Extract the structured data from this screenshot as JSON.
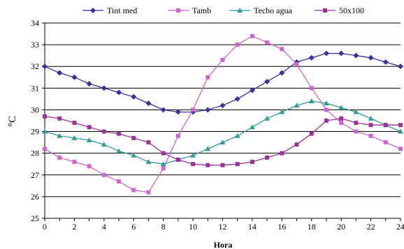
{
  "chart_data": {
    "type": "line",
    "xlabel": "Hora",
    "ylabel": "°C",
    "xlim": [
      0,
      24
    ],
    "ylim": [
      25,
      34
    ],
    "xticks": [
      0,
      2,
      4,
      6,
      8,
      10,
      12,
      14,
      16,
      18,
      20,
      22,
      24
    ],
    "yticks": [
      25,
      26,
      27,
      28,
      29,
      30,
      31,
      32,
      33,
      34
    ],
    "grid": "horizontal",
    "legend_position": "top",
    "x": [
      0,
      1,
      2,
      3,
      4,
      5,
      6,
      7,
      8,
      9,
      10,
      11,
      12,
      13,
      14,
      15,
      16,
      17,
      18,
      19,
      20,
      21,
      22,
      23,
      24
    ],
    "series": [
      {
        "name": "Tint med",
        "color": "#333399",
        "marker": "diamond",
        "values": [
          32.0,
          31.7,
          31.5,
          31.2,
          31.0,
          30.8,
          30.6,
          30.3,
          30.0,
          29.9,
          29.9,
          30.0,
          30.2,
          30.5,
          30.9,
          31.3,
          31.7,
          32.2,
          32.4,
          32.6,
          32.6,
          32.5,
          32.4,
          32.2,
          32.0
        ]
      },
      {
        "name": "Tamb",
        "color": "#CC66CC",
        "marker": "square",
        "values": [
          28.2,
          27.8,
          27.6,
          27.4,
          27.0,
          26.7,
          26.3,
          26.2,
          27.3,
          28.8,
          30.0,
          31.5,
          32.3,
          33.0,
          33.4,
          33.1,
          32.8,
          32.1,
          31.0,
          30.0,
          29.4,
          29.0,
          28.8,
          28.5,
          28.2
        ]
      },
      {
        "name": "Techo agua",
        "color": "#339999",
        "marker": "triangle",
        "values": [
          29.0,
          28.8,
          28.7,
          28.6,
          28.4,
          28.1,
          27.9,
          27.6,
          27.5,
          27.7,
          27.9,
          28.2,
          28.5,
          28.8,
          29.2,
          29.6,
          29.9,
          30.2,
          30.4,
          30.3,
          30.1,
          29.9,
          29.6,
          29.3,
          29.0
        ]
      },
      {
        "name": "50x100",
        "color": "#993399",
        "marker": "square",
        "values": [
          29.7,
          29.6,
          29.4,
          29.2,
          29.0,
          28.9,
          28.7,
          28.5,
          28.0,
          27.7,
          27.5,
          27.45,
          27.45,
          27.5,
          27.6,
          27.8,
          28.0,
          28.4,
          28.9,
          29.5,
          29.6,
          29.4,
          29.3,
          29.3,
          29.3
        ]
      }
    ]
  }
}
